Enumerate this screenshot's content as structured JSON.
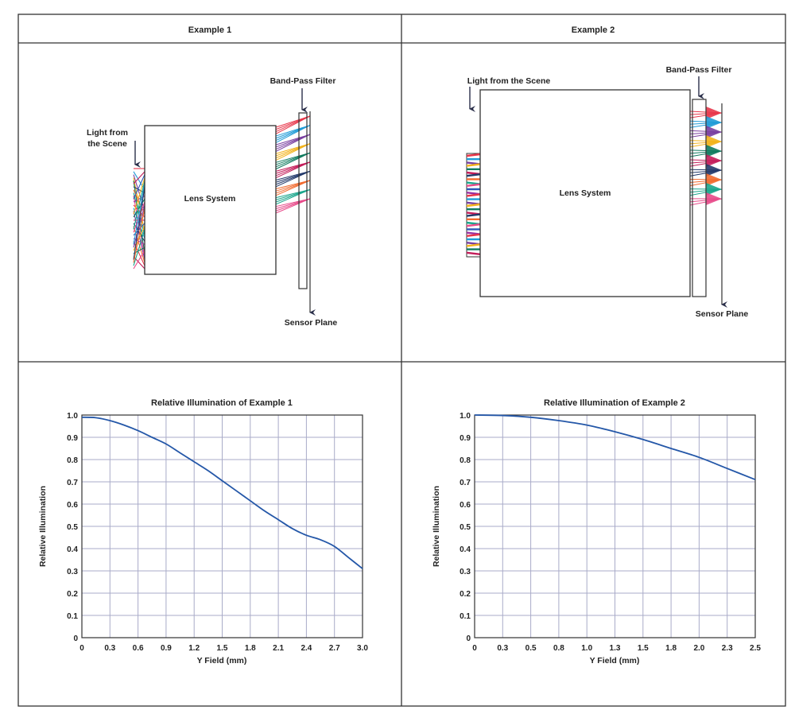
{
  "colors": {
    "frame": "#333333",
    "curve": "#2457a8",
    "grid": "#a9abc8",
    "arrow": "#2a2f4a",
    "rays": [
      "#e8364a",
      "#1f9bd7",
      "#7a3fa0",
      "#f2b21b",
      "#0f7b5f",
      "#c41d5a",
      "#233a6b",
      "#f26a2e",
      "#19a68c",
      "#e84a8a",
      "#2d58b8",
      "#9b2fa0"
    ]
  },
  "panels": {
    "example1": {
      "header": "Example 1",
      "labels": {
        "band_pass": "Band-Pass Filter",
        "light_line1": "Light from",
        "light_line2": "the Scene",
        "lens": "Lens System",
        "sensor": "Sensor Plane"
      }
    },
    "example2": {
      "header": "Example 2",
      "labels": {
        "band_pass": "Band-Pass Filter",
        "light": "Light from the Scene",
        "lens": "Lens System",
        "sensor": "Sensor Plane"
      }
    }
  },
  "chart_data": [
    {
      "type": "line",
      "title": "Relative Illumination of Example 1",
      "xlabel": "Y Field (mm)",
      "ylabel": "Relative Illumination",
      "xlim": [
        0,
        3.0
      ],
      "ylim": [
        0,
        1.0
      ],
      "x_ticks": [
        "0",
        "0.3",
        "0.6",
        "0.9",
        "1.2",
        "1.5",
        "1.8",
        "2.1",
        "2.4",
        "2.7",
        "3.0"
      ],
      "y_ticks": [
        "0",
        "0.1",
        "0.2",
        "0.3",
        "0.4",
        "0.5",
        "0.6",
        "0.7",
        "0.8",
        "0.9",
        "1.0"
      ],
      "grid": true,
      "series": [
        {
          "x": [
            0,
            0.15,
            0.3,
            0.45,
            0.6,
            0.75,
            0.9,
            1.05,
            1.2,
            1.35,
            1.5,
            1.65,
            1.8,
            1.95,
            2.1,
            2.25,
            2.4,
            2.55,
            2.7,
            2.85,
            3.0
          ],
          "y": [
            0.99,
            0.988,
            0.975,
            0.955,
            0.93,
            0.9,
            0.87,
            0.83,
            0.79,
            0.75,
            0.705,
            0.66,
            0.615,
            0.57,
            0.53,
            0.49,
            0.46,
            0.44,
            0.41,
            0.36,
            0.31
          ]
        }
      ]
    },
    {
      "type": "line",
      "title": "Relative Illumination of Example 2",
      "xlabel": "Y Field (mm)",
      "ylabel": "Relative Illumination",
      "xlim": [
        0,
        2.5
      ],
      "ylim": [
        0,
        1.0
      ],
      "x_ticks": [
        "0",
        "0.3",
        "0.5",
        "0.8",
        "1.0",
        "1.3",
        "1.5",
        "1.8",
        "2.0",
        "2.3",
        "2.5"
      ],
      "y_ticks": [
        "0",
        "0.1",
        "0.2",
        "0.3",
        "0.4",
        "0.5",
        "0.6",
        "0.7",
        "0.8",
        "0.9",
        "1.0"
      ],
      "grid": true,
      "series": [
        {
          "x": [
            0,
            0.25,
            0.5,
            0.75,
            1.0,
            1.25,
            1.5,
            1.75,
            2.0,
            2.25,
            2.5
          ],
          "y": [
            1.0,
            0.998,
            0.99,
            0.975,
            0.955,
            0.925,
            0.89,
            0.85,
            0.81,
            0.76,
            0.71
          ]
        }
      ]
    }
  ]
}
